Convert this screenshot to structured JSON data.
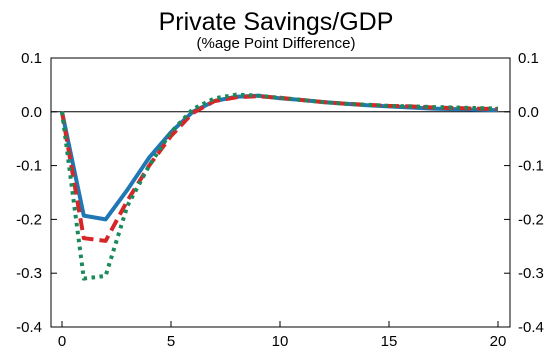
{
  "chart_data": {
    "type": "line",
    "title": "Private Savings/GDP",
    "subtitle": "(%age Point Difference)",
    "xlabel": "",
    "ylabel": "",
    "xlim": [
      0,
      20
    ],
    "ylim": [
      -0.4,
      0.1
    ],
    "x_ticks": [
      0,
      5,
      10,
      15,
      20
    ],
    "x_tick_labels": [
      "0",
      "5",
      "10",
      "15",
      "20"
    ],
    "y_ticks": [
      0.1,
      0.0,
      -0.1,
      -0.2,
      -0.3,
      -0.4
    ],
    "y_tick_labels": [
      "0.1",
      "0.0",
      "-0.1",
      "-0.2",
      "-0.3",
      "-0.4"
    ],
    "zero_line": true,
    "grid": false,
    "x": [
      0,
      1,
      2,
      3,
      4,
      5,
      6,
      7,
      8,
      9,
      10,
      11,
      12,
      13,
      14,
      15,
      16,
      17,
      18,
      19,
      20
    ],
    "series": [
      {
        "color": "#1f77b4",
        "style": "solid",
        "values": [
          0.0,
          -0.193,
          -0.2,
          -0.145,
          -0.085,
          -0.038,
          0.0,
          0.02,
          0.028,
          0.03,
          0.025,
          0.022,
          0.018,
          0.015,
          0.012,
          0.01,
          0.008,
          0.006,
          0.005,
          0.004,
          0.003
        ]
      },
      {
        "color": "#d62728",
        "style": "dashed",
        "values": [
          0.0,
          -0.235,
          -0.24,
          -0.165,
          -0.1,
          -0.045,
          -0.002,
          0.02,
          0.027,
          0.029,
          0.026,
          0.022,
          0.018,
          0.015,
          0.013,
          0.011,
          0.01,
          0.008,
          0.007,
          0.006,
          0.005
        ]
      },
      {
        "color": "#1a8a5a",
        "style": "dotted",
        "values": [
          0.0,
          -0.31,
          -0.305,
          -0.175,
          -0.1,
          -0.038,
          0.005,
          0.025,
          0.032,
          0.03,
          0.026,
          0.022,
          0.018,
          0.015,
          0.013,
          0.011,
          0.01,
          0.009,
          0.008,
          0.007,
          0.006
        ]
      }
    ]
  }
}
